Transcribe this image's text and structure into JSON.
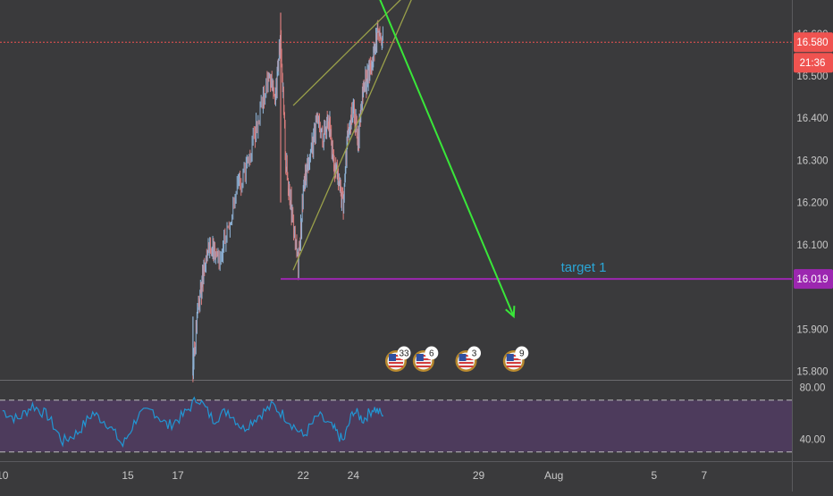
{
  "colors": {
    "background": "#3a3a3c",
    "axis_text": "#c8c8c8",
    "candle_up": "#8fb4d9",
    "candle_down": "#d97c7c",
    "current_price": "#ef5350",
    "target": "#9c27b0",
    "target_label": "#2aa6d6",
    "arrow": "#39e639",
    "channel": "#9aa04a",
    "rsi_line": "#2196d3",
    "rsi_band": "#4d3b5c"
  },
  "chart_data": [
    {
      "type": "line",
      "title": "",
      "price_axis": {
        "ticks": [
          "15.800",
          "15.900",
          "16.100",
          "16.200",
          "16.300",
          "16.400",
          "16.500",
          "16.600"
        ],
        "tick_values": [
          15.8,
          15.9,
          16.1,
          16.2,
          16.3,
          16.4,
          16.5,
          16.6
        ],
        "ylim": [
          15.78,
          16.68
        ]
      },
      "x_axis": {
        "ticks": [
          "10",
          "15",
          "17",
          "22",
          "24",
          "29",
          "Aug",
          "5",
          "7"
        ],
        "tick_days": [
          10,
          15,
          17,
          22,
          24,
          29,
          32,
          36,
          38
        ],
        "xlim": [
          9.9,
          41.5
        ],
        "unit": "day (July, continuing into August)"
      },
      "series": [
        {
          "x": [
            17.6,
            17.8,
            18.0,
            18.3,
            18.6,
            19.0,
            19.4,
            19.8,
            20.2,
            20.6,
            20.9,
            21.1,
            21.3,
            21.5,
            21.8,
            22.0,
            22.2,
            22.5,
            22.8,
            23.0,
            23.2,
            23.4,
            23.6,
            23.8,
            24.0,
            24.2,
            24.4,
            24.6,
            24.8,
            25.0,
            25.2
          ],
          "values": [
            15.8,
            15.95,
            16.02,
            16.1,
            16.06,
            16.15,
            16.23,
            16.3,
            16.4,
            16.5,
            16.45,
            16.6,
            16.3,
            16.2,
            16.05,
            16.22,
            16.3,
            16.38,
            16.36,
            16.41,
            16.3,
            16.25,
            16.2,
            16.38,
            16.42,
            16.35,
            16.47,
            16.5,
            16.55,
            16.62,
            16.58
          ]
        }
      ],
      "current_price": 16.58,
      "current_price_label": "16.580",
      "countdown": "21:36",
      "target": {
        "value": 16.019,
        "label": "target 1",
        "price_label": "16.019",
        "from_x": 21.1
      },
      "channel": {
        "upper": [
          [
            21.6,
            16.43
          ],
          [
            26.9,
            16.74
          ]
        ],
        "lower": [
          [
            21.6,
            16.04
          ],
          [
            26.9,
            16.76
          ]
        ]
      },
      "arrow": {
        "from": [
          25.0,
          16.69
        ],
        "to": [
          30.4,
          15.93
        ]
      },
      "event_markers": [
        {
          "x": 25.7,
          "count": "33"
        },
        {
          "x": 26.8,
          "count": "6"
        },
        {
          "x": 28.5,
          "count": "3"
        },
        {
          "x": 30.4,
          "count": "9"
        }
      ]
    },
    {
      "type": "line",
      "title": "",
      "indicator": "RSI",
      "ticks": [
        "80.00",
        "40.00"
      ],
      "tick_values": [
        80,
        40
      ],
      "band": [
        30,
        70
      ],
      "ylim": [
        25,
        85
      ],
      "series": [
        {
          "x": [
            10.0,
            10.6,
            11.2,
            11.8,
            12.4,
            13.0,
            13.6,
            14.2,
            14.8,
            15.4,
            16.0,
            16.6,
            17.2,
            17.8,
            18.4,
            19.0,
            19.6,
            20.2,
            20.8,
            21.4,
            22.0,
            22.6,
            23.2,
            23.6,
            24.0,
            24.4,
            24.8,
            25.2
          ],
          "values": [
            62,
            55,
            66,
            58,
            38,
            45,
            60,
            52,
            35,
            58,
            62,
            50,
            58,
            72,
            55,
            62,
            48,
            58,
            66,
            55,
            42,
            58,
            48,
            38,
            62,
            55,
            64,
            58
          ]
        }
      ]
    }
  ]
}
